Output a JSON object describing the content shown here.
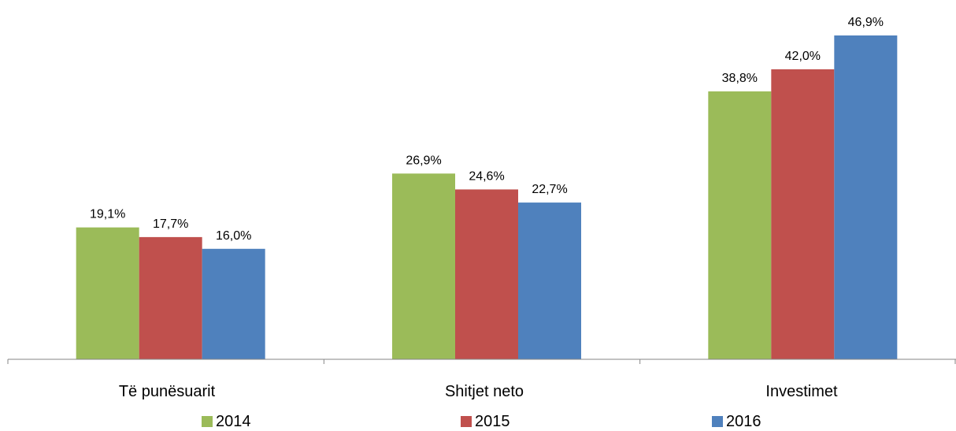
{
  "chart_data": {
    "type": "bar",
    "categories": [
      "Të punësuarit",
      "Shitjet neto",
      "Investimet"
    ],
    "series": [
      {
        "name": "2014",
        "color": "#9BBB59",
        "values": [
          19.1,
          26.9,
          38.8
        ],
        "labels": [
          "19,1%",
          "26,9%",
          "38,8%"
        ]
      },
      {
        "name": "2015",
        "color": "#C0504D",
        "values": [
          17.7,
          24.6,
          42.0
        ],
        "labels": [
          "17,7%",
          "24,6%",
          "42,0%"
        ]
      },
      {
        "name": "2016",
        "color": "#4F81BD",
        "values": [
          16.0,
          22.7,
          46.9
        ],
        "labels": [
          "16,0%",
          "22,7%",
          "46,9%"
        ]
      }
    ],
    "ylim": [
      0,
      46.9
    ],
    "grid": false,
    "legend_position": "bottom",
    "axis_color": "#868686"
  }
}
